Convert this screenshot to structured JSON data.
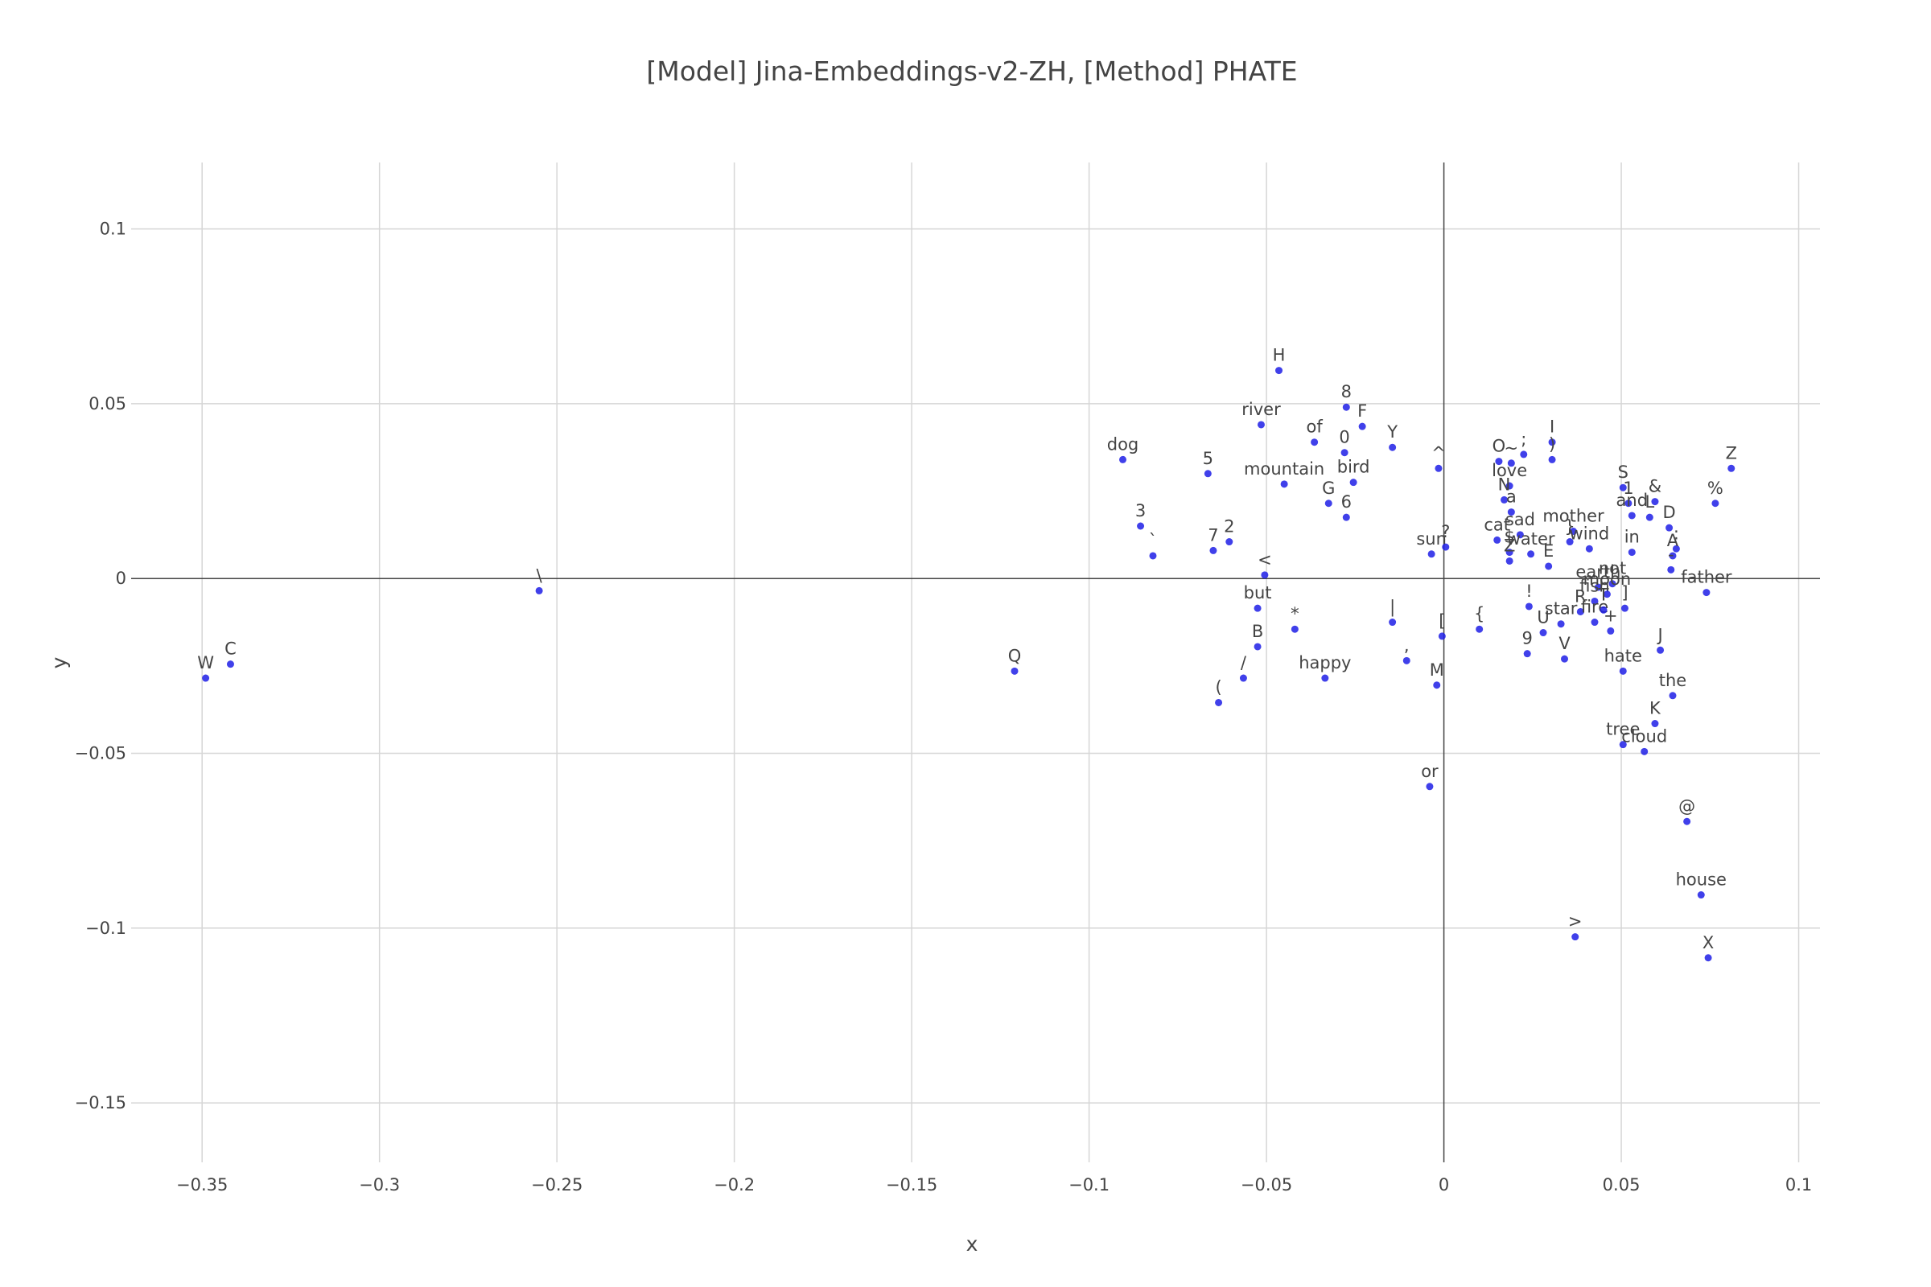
{
  "chart_data": {
    "type": "scatter",
    "title": "[Model] Jina-Embeddings-v2-ZH, [Method] PHATE",
    "xlabel": "x",
    "ylabel": "y",
    "xlim": [
      -0.37,
      0.106
    ],
    "ylim": [
      -0.167,
      0.119
    ],
    "x_ticks": [
      -0.35,
      -0.3,
      -0.25,
      -0.2,
      -0.15,
      -0.1,
      -0.05,
      0,
      0.05,
      0.1
    ],
    "x_tick_labels": [
      "−0.35",
      "−0.3",
      "−0.25",
      "−0.2",
      "−0.15",
      "−0.1",
      "−0.05",
      "0",
      "0.05",
      "0.1"
    ],
    "y_ticks": [
      -0.15,
      -0.1,
      -0.05,
      0,
      0.05,
      0.1
    ],
    "y_tick_labels": [
      "−0.15",
      "−0.1",
      "−0.05",
      "0",
      "0.05",
      "0.1"
    ],
    "grid": true,
    "zero_lines": true,
    "marker_color": "#1f1fe6",
    "points": [
      {
        "label": "W",
        "x": -0.349,
        "y": -0.0285
      },
      {
        "label": "C",
        "x": -0.342,
        "y": -0.0245
      },
      {
        "label": "\\",
        "x": -0.255,
        "y": -0.0035
      },
      {
        "label": "Q",
        "x": -0.121,
        "y": -0.0265
      },
      {
        "label": "dog",
        "x": -0.0905,
        "y": 0.034
      },
      {
        "label": "3",
        "x": -0.0855,
        "y": 0.015
      },
      {
        "label": "`",
        "x": -0.082,
        "y": 0.0065
      },
      {
        "label": "5",
        "x": -0.0665,
        "y": 0.03
      },
      {
        "label": "7",
        "x": -0.065,
        "y": 0.008
      },
      {
        "label": "2",
        "x": -0.0605,
        "y": 0.0105
      },
      {
        "label": "(",
        "x": -0.0635,
        "y": -0.0355
      },
      {
        "label": "/",
        "x": -0.0565,
        "y": -0.0285
      },
      {
        "label": "river",
        "x": -0.0515,
        "y": 0.044
      },
      {
        "label": "H",
        "x": -0.0465,
        "y": 0.0595
      },
      {
        "label": "<",
        "x": -0.0505,
        "y": 0.001
      },
      {
        "label": "but",
        "x": -0.0525,
        "y": -0.0085
      },
      {
        "label": "B",
        "x": -0.0525,
        "y": -0.0195
      },
      {
        "label": "*",
        "x": -0.042,
        "y": -0.0145
      },
      {
        "label": "mountain",
        "x": -0.045,
        "y": 0.027
      },
      {
        "label": "of",
        "x": -0.0365,
        "y": 0.039
      },
      {
        "label": "G",
        "x": -0.0325,
        "y": 0.0215
      },
      {
        "label": "0",
        "x": -0.028,
        "y": 0.036
      },
      {
        "label": "8",
        "x": -0.0275,
        "y": 0.049
      },
      {
        "label": "bird",
        "x": -0.0255,
        "y": 0.0275
      },
      {
        "label": "6",
        "x": -0.0275,
        "y": 0.0175
      },
      {
        "label": "happy",
        "x": -0.0335,
        "y": -0.0285
      },
      {
        "label": "F",
        "x": -0.023,
        "y": 0.0435
      },
      {
        "label": "Y",
        "x": -0.0145,
        "y": 0.0375
      },
      {
        "label": "|",
        "x": -0.0145,
        "y": -0.0125
      },
      {
        "label": ",",
        "x": -0.0105,
        "y": -0.0235
      },
      {
        "label": "^",
        "x": -0.0015,
        "y": 0.0315
      },
      {
        "label": "sun",
        "x": -0.0035,
        "y": 0.007
      },
      {
        "label": "?",
        "x": 0.0005,
        "y": 0.009
      },
      {
        "label": "[",
        "x": -0.0005,
        "y": -0.0165
      },
      {
        "label": "M",
        "x": -0.002,
        "y": -0.0305
      },
      {
        "label": "or",
        "x": -0.004,
        "y": -0.0595
      },
      {
        "label": "{",
        "x": 0.01,
        "y": -0.0145
      },
      {
        "label": "O",
        "x": 0.0155,
        "y": 0.0335
      },
      {
        "label": "~",
        "x": 0.019,
        "y": 0.033
      },
      {
        "label": ";",
        "x": 0.0225,
        "y": 0.0355
      },
      {
        "label": "love",
        "x": 0.0185,
        "y": 0.0265
      },
      {
        "label": "N",
        "x": 0.017,
        "y": 0.0225
      },
      {
        "label": "a",
        "x": 0.019,
        "y": 0.019
      },
      {
        "label": "cat",
        "x": 0.015,
        "y": 0.011
      },
      {
        "label": "sad",
        "x": 0.0215,
        "y": 0.0125
      },
      {
        "label": "$",
        "x": 0.0185,
        "y": 0.0075
      },
      {
        "label": "Z",
        "x": 0.0185,
        "y": 0.005
      },
      {
        "label": "water",
        "x": 0.0245,
        "y": 0.007
      },
      {
        "label": "E",
        "x": 0.0295,
        "y": 0.0035
      },
      {
        "label": "I",
        "x": 0.0305,
        "y": 0.039
      },
      {
        "label": ")",
        "x": 0.0305,
        "y": 0.034
      },
      {
        "label": "!",
        "x": 0.024,
        "y": -0.008
      },
      {
        "label": "9",
        "x": 0.0235,
        "y": -0.0215
      },
      {
        "label": "U",
        "x": 0.028,
        "y": -0.0155
      },
      {
        "label": "V",
        "x": 0.034,
        "y": -0.023
      },
      {
        "label": "star",
        "x": 0.033,
        "y": -0.013
      },
      {
        "label": "mother",
        "x": 0.0365,
        "y": 0.0135
      },
      {
        "label": "wind",
        "x": 0.041,
        "y": 0.0085
      },
      {
        "label": "}",
        "x": 0.0355,
        "y": 0.0105
      },
      {
        "label": "earth",
        "x": 0.0435,
        "y": -0.0025
      },
      {
        "label": "not",
        "x": 0.0475,
        "y": -0.0015
      },
      {
        "label": "fish",
        "x": 0.0425,
        "y": -0.0065
      },
      {
        "label": "moon",
        "x": 0.046,
        "y": -0.0045
      },
      {
        "label": "R",
        "x": 0.0385,
        "y": -0.0095
      },
      {
        "label": "fire",
        "x": 0.0425,
        "y": -0.0125
      },
      {
        "label": "T",
        "x": 0.045,
        "y": -0.009
      },
      {
        "label": "+",
        "x": 0.047,
        "y": -0.015
      },
      {
        "label": "]",
        "x": 0.051,
        "y": -0.0085
      },
      {
        "label": "1",
        "x": 0.052,
        "y": 0.0215
      },
      {
        "label": "S",
        "x": 0.0505,
        "y": 0.026
      },
      {
        "label": "and",
        "x": 0.053,
        "y": 0.018
      },
      {
        "label": "in",
        "x": 0.053,
        "y": 0.0075
      },
      {
        "label": "&",
        "x": 0.0595,
        "y": 0.022
      },
      {
        "label": "L",
        "x": 0.058,
        "y": 0.0175
      },
      {
        "label": "D",
        "x": 0.0635,
        "y": 0.0145
      },
      {
        "label": ":",
        "x": 0.0655,
        "y": 0.0085
      },
      {
        "label": "A",
        "x": 0.0645,
        "y": 0.0065
      },
      {
        "label": "-",
        "x": 0.064,
        "y": 0.0025
      },
      {
        "label": "%",
        "x": 0.0765,
        "y": 0.0215
      },
      {
        "label": "Z",
        "x": 0.081,
        "y": 0.0315
      },
      {
        "label": "father",
        "x": 0.074,
        "y": -0.004
      },
      {
        "label": "hate",
        "x": 0.0505,
        "y": -0.0265
      },
      {
        "label": "J",
        "x": 0.061,
        "y": -0.0205
      },
      {
        "label": "the",
        "x": 0.0645,
        "y": -0.0335
      },
      {
        "label": "K",
        "x": 0.0595,
        "y": -0.0415
      },
      {
        "label": "tree",
        "x": 0.0505,
        "y": -0.0475
      },
      {
        "label": "cloud",
        "x": 0.0565,
        "y": -0.0495
      },
      {
        "label": "@",
        "x": 0.0685,
        "y": -0.0695
      },
      {
        "label": "house",
        "x": 0.0725,
        "y": -0.0905
      },
      {
        "label": ">",
        "x": 0.037,
        "y": -0.1025
      },
      {
        "label": "X",
        "x": 0.0745,
        "y": -0.1085
      }
    ]
  }
}
